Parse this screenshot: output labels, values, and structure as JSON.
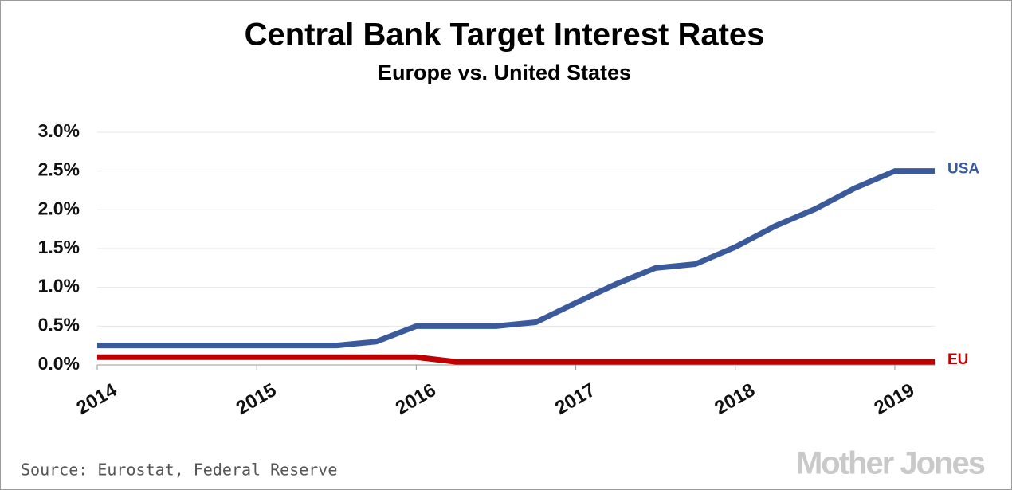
{
  "chart_data": {
    "type": "line",
    "title": "Central Bank Target Interest Rates",
    "subtitle": "Europe vs. United States",
    "x": [
      2014,
      2014.25,
      2014.5,
      2014.75,
      2015,
      2015.25,
      2015.5,
      2015.75,
      2016,
      2016.25,
      2016.5,
      2016.75,
      2017,
      2017.25,
      2017.5,
      2017.75,
      2018,
      2018.25,
      2018.5,
      2018.75,
      2019,
      2019.25
    ],
    "series": [
      {
        "name": "USA",
        "color": "#3a5a9c",
        "values": [
          0.25,
          0.25,
          0.25,
          0.25,
          0.25,
          0.25,
          0.25,
          0.3,
          0.5,
          0.5,
          0.5,
          0.55,
          0.8,
          1.04,
          1.25,
          1.3,
          1.52,
          1.79,
          2.01,
          2.28,
          2.5,
          2.5
        ]
      },
      {
        "name": "EU",
        "color": "#c00000",
        "values": [
          0.1,
          0.1,
          0.1,
          0.1,
          0.1,
          0.1,
          0.1,
          0.1,
          0.1,
          0.04,
          0.04,
          0.04,
          0.04,
          0.04,
          0.04,
          0.04,
          0.04,
          0.04,
          0.04,
          0.04,
          0.04,
          0.04
        ]
      }
    ],
    "xlim": [
      2014,
      2019.25
    ],
    "xticks": [
      2014,
      2015,
      2016,
      2017,
      2018,
      2019
    ],
    "ylim": [
      0,
      3
    ],
    "yticks": [
      {
        "value": 0,
        "label": "0.0%"
      },
      {
        "value": 0.5,
        "label": "0.5%"
      },
      {
        "value": 1,
        "label": "1.0%"
      },
      {
        "value": 1.5,
        "label": "1.5%"
      },
      {
        "value": 2,
        "label": "2.0%"
      },
      {
        "value": 2.5,
        "label": "2.5%"
      },
      {
        "value": 3,
        "label": "3.0%"
      }
    ],
    "grid": true,
    "source": "Source: Eurostat, Federal Reserve",
    "watermark": "Mother Jones"
  }
}
